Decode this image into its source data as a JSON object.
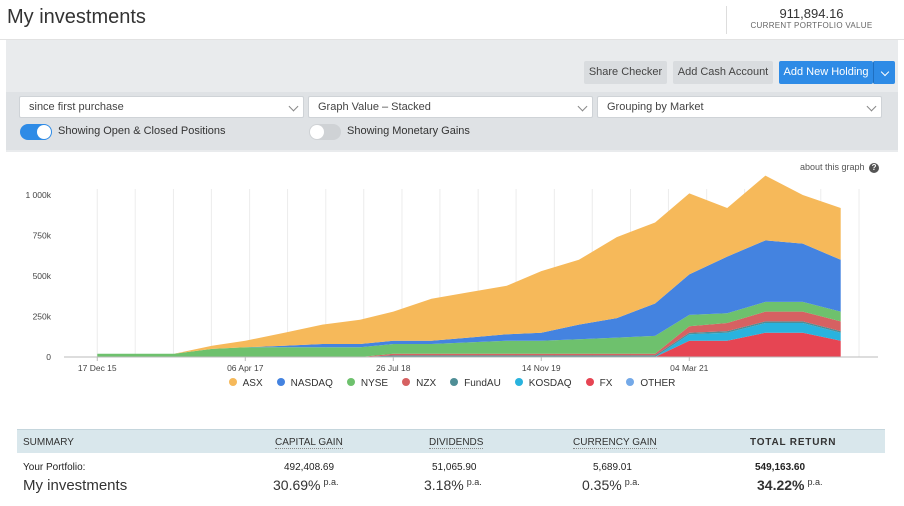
{
  "header": {
    "title": "My investments",
    "portfolio_value": "911,894.16",
    "portfolio_label": "CURRENT PORTFOLIO VALUE"
  },
  "toolbar": {
    "share_checker": "Share Checker",
    "add_cash_account": "Add Cash Account",
    "add_new_holding": "Add New Holding"
  },
  "filters": {
    "period": "since first purchase",
    "graph_value": "Graph Value – Stacked",
    "grouping": "Grouping by Market",
    "toggle_positions": "Showing Open & Closed Positions",
    "toggle_positions_on": true,
    "toggle_gains": "Showing Monetary Gains",
    "toggle_gains_on": false
  },
  "about_graph": "about this graph",
  "chart_data": {
    "type": "area",
    "stacked": true,
    "x": [
      "2015-12-17",
      "2016-04-20",
      "2016-08-20",
      "2016-12-20",
      "2017-04-06",
      "2017-08-10",
      "2017-12-10",
      "2018-04-10",
      "2018-07-26",
      "2018-11-26",
      "2019-03-26",
      "2019-07-26",
      "2019-11-14",
      "2020-03-14",
      "2020-07-14",
      "2020-11-14",
      "2021-03-04",
      "2021-07-04",
      "2021-11-04",
      "2022-03-04",
      "2022-07-04"
    ],
    "x_tick_labels": [
      "17 Dec 15",
      "06 Apr 17",
      "26 Jul 18",
      "14 Nov 19",
      "04 Mar 21"
    ],
    "y_tick_labels": [
      "0",
      "250k",
      "500k",
      "750k",
      "1 000k"
    ],
    "ylim": [
      0,
      1000000
    ],
    "series": [
      {
        "name": "OTHER",
        "color": "#74a9e8",
        "values": [
          0,
          0,
          0,
          0,
          0,
          0,
          0,
          0,
          0,
          0,
          0,
          0,
          0,
          0,
          0,
          0,
          0,
          0,
          0,
          0,
          0
        ]
      },
      {
        "name": "FX",
        "color": "#e64553",
        "values": [
          0,
          0,
          0,
          0,
          0,
          0,
          0,
          0,
          0,
          0,
          0,
          0,
          0,
          0,
          0,
          0,
          100000,
          100000,
          150000,
          150000,
          100000
        ]
      },
      {
        "name": "KOSDAQ",
        "color": "#29b3de",
        "values": [
          0,
          0,
          0,
          0,
          0,
          0,
          0,
          0,
          0,
          0,
          0,
          0,
          0,
          0,
          0,
          0,
          40000,
          50000,
          60000,
          60000,
          50000
        ]
      },
      {
        "name": "FundAU",
        "color": "#4f8e96",
        "values": [
          0,
          0,
          0,
          0,
          0,
          0,
          0,
          0,
          10000,
          10000,
          10000,
          10000,
          10000,
          10000,
          10000,
          10000,
          10000,
          10000,
          10000,
          10000,
          10000
        ]
      },
      {
        "name": "NZX",
        "color": "#d66162",
        "values": [
          0,
          0,
          0,
          0,
          0,
          0,
          0,
          0,
          10000,
          10000,
          10000,
          10000,
          10000,
          10000,
          10000,
          10000,
          40000,
          50000,
          60000,
          60000,
          60000
        ]
      },
      {
        "name": "NYSE",
        "color": "#6ec16d",
        "values": [
          20000,
          20000,
          20000,
          50000,
          60000,
          60000,
          60000,
          60000,
          60000,
          60000,
          70000,
          80000,
          80000,
          90000,
          100000,
          110000,
          70000,
          60000,
          60000,
          60000,
          60000
        ]
      },
      {
        "name": "NASDAQ",
        "color": "#4483e0",
        "values": [
          0,
          0,
          0,
          0,
          0,
          10000,
          20000,
          20000,
          20000,
          20000,
          30000,
          40000,
          50000,
          90000,
          120000,
          200000,
          250000,
          350000,
          380000,
          360000,
          320000
        ]
      },
      {
        "name": "ASX",
        "color": "#f6b95a",
        "values": [
          0,
          0,
          0,
          20000,
          40000,
          80000,
          120000,
          150000,
          180000,
          260000,
          280000,
          300000,
          380000,
          400000,
          500000,
          500000,
          500000,
          300000,
          400000,
          300000,
          320000
        ]
      }
    ],
    "legend": [
      "ASX",
      "NASDAQ",
      "NYSE",
      "NZX",
      "FundAU",
      "KOSDAQ",
      "FX",
      "OTHER"
    ]
  },
  "summary": {
    "headers": [
      "SUMMARY",
      "CAPITAL GAIN",
      "DIVIDENDS",
      "CURRENCY GAIN",
      "TOTAL RETURN"
    ],
    "row_label": "Your Portfolio:",
    "row_name": "My investments",
    "capital_gain": "492,408.69",
    "capital_gain_pa": "30.69%",
    "dividends": "51,065.90",
    "dividends_pa": "3.18%",
    "currency_gain": "5,689.01",
    "currency_gain_pa": "0.35%",
    "total_return": "549,163.60",
    "total_return_pa": "34.22%",
    "pa_label": "p.a."
  }
}
